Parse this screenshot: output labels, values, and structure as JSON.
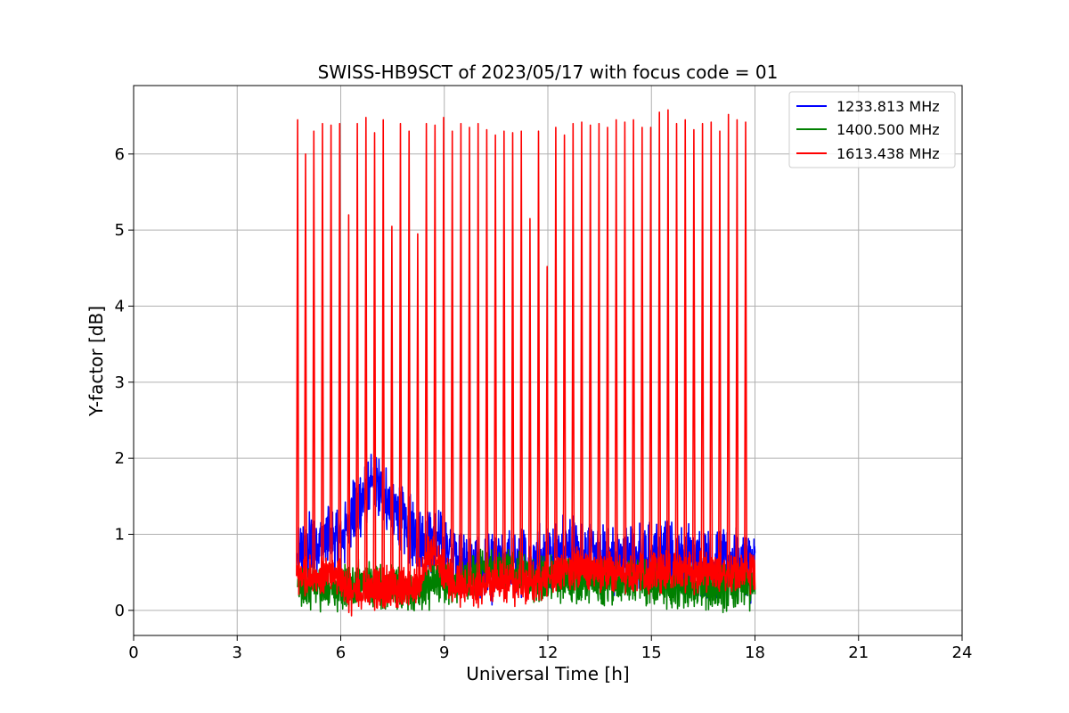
{
  "chart_data": {
    "type": "line",
    "title": "SWISS-HB9SCT of 2023/05/17 with focus code = 01",
    "xlabel": "Universal Time [h]",
    "ylabel": "Y-factor [dB]",
    "xlim": [
      0,
      24
    ],
    "ylim": [
      -0.33,
      6.9
    ],
    "xticks": [
      0,
      3,
      6,
      9,
      12,
      15,
      18,
      21,
      24
    ],
    "yticks": [
      0,
      1,
      2,
      3,
      4,
      5,
      6
    ],
    "grid": true,
    "legend_position": "top-right",
    "calibration_peaks_x": [
      4.75,
      4.98,
      5.22,
      5.47,
      5.72,
      5.97,
      6.23,
      6.48,
      6.73,
      6.98,
      7.23,
      7.48,
      7.73,
      7.98,
      8.23,
      8.48,
      8.73,
      8.98,
      9.23,
      9.48,
      9.73,
      9.98,
      10.23,
      10.48,
      10.73,
      10.98,
      11.23,
      11.48,
      11.73,
      11.98,
      12.23,
      12.48,
      12.73,
      12.98,
      13.23,
      13.48,
      13.73,
      13.98,
      14.23,
      14.48,
      14.73,
      14.98,
      15.23,
      15.48,
      15.73,
      15.98,
      16.23,
      16.48,
      16.73,
      16.98,
      17.23,
      17.48,
      17.73
    ],
    "calibration_peaks_y": [
      6.45,
      6.0,
      6.3,
      6.4,
      6.38,
      6.4,
      5.2,
      6.4,
      6.48,
      6.28,
      6.45,
      5.05,
      6.4,
      6.3,
      4.95,
      6.4,
      6.38,
      6.48,
      6.3,
      6.4,
      6.35,
      6.4,
      6.32,
      6.25,
      6.3,
      6.28,
      6.3,
      5.15,
      6.3,
      4.52,
      6.35,
      6.25,
      6.4,
      6.42,
      6.38,
      6.4,
      6.35,
      6.45,
      6.42,
      6.45,
      6.35,
      6.35,
      6.55,
      6.58,
      6.4,
      6.45,
      6.32,
      6.4,
      6.42,
      6.3,
      6.52,
      6.45,
      6.42
    ],
    "series": [
      {
        "name": "1233.813 MHz",
        "color": "#0000ff",
        "x": [
          4.75,
          5.0,
          5.25,
          5.5,
          5.75,
          6.0,
          6.25,
          6.5,
          6.75,
          7.0,
          7.25,
          7.5,
          7.75,
          8.0,
          8.25,
          8.5,
          8.75,
          9.0,
          9.25,
          9.5,
          9.75,
          10.0,
          10.25,
          10.5,
          10.75,
          11.0,
          11.25,
          11.5,
          11.75,
          12.0,
          12.25,
          12.5,
          12.75,
          13.0,
          13.25,
          13.5,
          13.75,
          14.0,
          14.25,
          14.5,
          14.75,
          15.0,
          15.25,
          15.5,
          15.75,
          16.0,
          16.25,
          16.5,
          16.75,
          17.0,
          17.25,
          17.5,
          17.75,
          18.0
        ],
        "y": [
          0.65,
          0.8,
          0.9,
          0.95,
          0.95,
          0.9,
          1.2,
          1.35,
          1.55,
          1.65,
          1.5,
          1.3,
          1.2,
          1.05,
          1.0,
          0.95,
          0.9,
          0.85,
          0.75,
          0.6,
          0.55,
          0.5,
          0.55,
          0.55,
          0.6,
          0.6,
          0.65,
          0.65,
          0.7,
          0.75,
          0.75,
          0.8,
          0.8,
          0.75,
          0.7,
          0.65,
          0.65,
          0.65,
          0.7,
          0.7,
          0.7,
          0.7,
          0.75,
          0.75,
          0.7,
          0.7,
          0.65,
          0.65,
          0.6,
          0.6,
          0.6,
          0.6,
          0.6,
          0.55
        ],
        "noise": 0.33
      },
      {
        "name": "1400.500 MHz",
        "color": "#008000",
        "x": [
          4.75,
          5.0,
          5.25,
          5.5,
          5.75,
          6.0,
          6.25,
          6.5,
          6.75,
          7.0,
          7.25,
          7.5,
          7.75,
          8.0,
          8.25,
          8.5,
          8.75,
          9.0,
          9.25,
          9.5,
          9.75,
          10.0,
          10.25,
          10.5,
          10.75,
          11.0,
          11.25,
          11.5,
          11.75,
          12.0,
          12.25,
          12.5,
          12.75,
          13.0,
          13.25,
          13.5,
          13.75,
          14.0,
          14.25,
          14.5,
          14.75,
          15.0,
          15.25,
          15.5,
          15.75,
          16.0,
          16.25,
          16.5,
          16.75,
          17.0,
          17.25,
          17.5,
          17.75,
          18.0
        ],
        "y": [
          0.3,
          0.3,
          0.3,
          0.3,
          0.3,
          0.3,
          0.35,
          0.35,
          0.35,
          0.35,
          0.3,
          0.3,
          0.25,
          0.25,
          0.3,
          0.3,
          0.35,
          0.35,
          0.35,
          0.4,
          0.45,
          0.5,
          0.55,
          0.6,
          0.55,
          0.5,
          0.45,
          0.4,
          0.4,
          0.4,
          0.4,
          0.4,
          0.4,
          0.4,
          0.35,
          0.35,
          0.35,
          0.35,
          0.35,
          0.35,
          0.35,
          0.35,
          0.3,
          0.3,
          0.3,
          0.3,
          0.3,
          0.3,
          0.3,
          0.3,
          0.3,
          0.3,
          0.3,
          0.3
        ],
        "noise": 0.22
      },
      {
        "name": "1613.438 MHz",
        "color": "#ff0000",
        "x": [
          4.75,
          5.0,
          5.25,
          5.5,
          5.75,
          6.0,
          6.25,
          6.5,
          6.75,
          7.0,
          7.25,
          7.5,
          7.75,
          8.0,
          8.25,
          8.5,
          8.75,
          9.0,
          9.25,
          9.5,
          9.75,
          10.0,
          10.25,
          10.5,
          10.75,
          11.0,
          11.25,
          11.5,
          11.75,
          12.0,
          12.25,
          12.5,
          12.75,
          13.0,
          13.25,
          13.5,
          13.75,
          14.0,
          14.25,
          14.5,
          14.75,
          15.0,
          15.25,
          15.5,
          15.75,
          16.0,
          16.25,
          16.5,
          16.75,
          17.0,
          17.25,
          17.5,
          17.75,
          18.0
        ],
        "y": [
          0.45,
          0.45,
          0.45,
          0.45,
          0.45,
          0.45,
          0.22,
          0.22,
          0.25,
          0.28,
          0.3,
          0.28,
          0.28,
          0.3,
          0.35,
          0.72,
          0.72,
          0.5,
          0.35,
          0.3,
          0.3,
          0.32,
          0.35,
          0.35,
          0.35,
          0.35,
          0.35,
          0.35,
          0.4,
          0.45,
          0.45,
          0.5,
          0.55,
          0.55,
          0.55,
          0.5,
          0.5,
          0.5,
          0.5,
          0.5,
          0.5,
          0.5,
          0.5,
          0.5,
          0.5,
          0.5,
          0.5,
          0.5,
          0.5,
          0.5,
          0.5,
          0.5,
          0.5,
          0.5
        ],
        "noise": 0.2
      }
    ]
  }
}
